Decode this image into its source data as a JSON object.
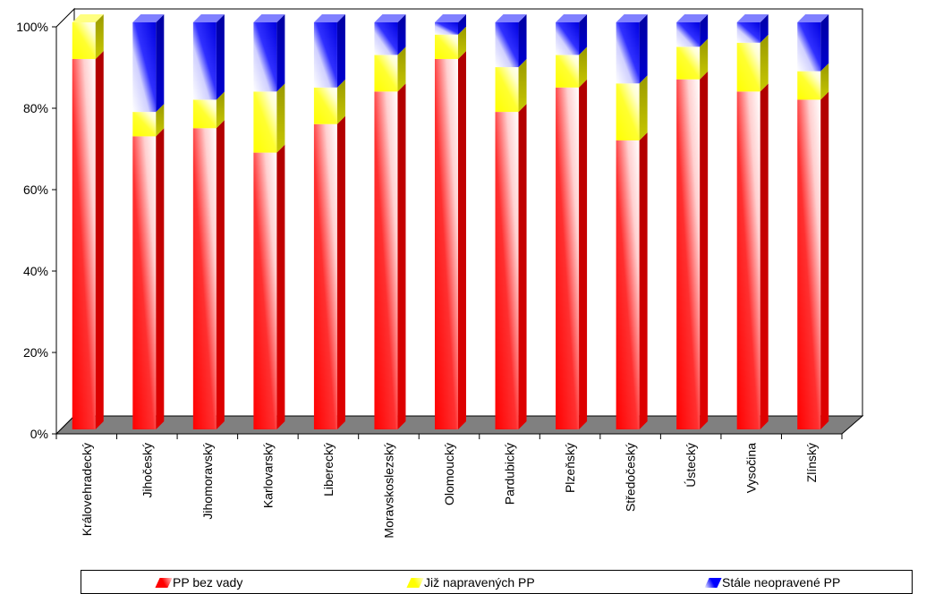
{
  "chart_data": {
    "type": "bar",
    "stacked": "percent",
    "title": "",
    "xlabel": "",
    "ylabel": "",
    "ylim": [
      0,
      100
    ],
    "y_ticks": [
      "0%",
      "20%",
      "40%",
      "60%",
      "80%",
      "100%"
    ],
    "grid": false,
    "legend_position": "bottom",
    "categories": [
      "Královehradecký",
      "Jihočeský",
      "Jihomoravský",
      "Karlovarský",
      "Liberecký",
      "Moravskoslezský",
      "Olomoucký",
      "Pardubický",
      "Plzeňský",
      "Středočeský",
      "Ústecký",
      "Vysočina",
      "Zlínský"
    ],
    "series": [
      {
        "name": "PP bez vady",
        "color": "#ff0000",
        "values": [
          91,
          72,
          74,
          68,
          75,
          83,
          91,
          78,
          84,
          71,
          86,
          83,
          81
        ]
      },
      {
        "name": "Již napravených PP",
        "color": "#ffff00",
        "values": [
          9,
          6,
          7,
          15,
          9,
          9,
          6,
          11,
          8,
          14,
          8,
          12,
          7
        ]
      },
      {
        "name": "Stále neopravené PP",
        "color": "#0000ff",
        "values": [
          0,
          22,
          19,
          17,
          16,
          8,
          3,
          11,
          8,
          15,
          6,
          5,
          12
        ]
      }
    ]
  }
}
